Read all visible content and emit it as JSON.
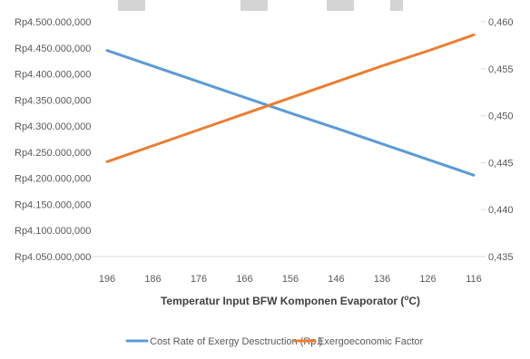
{
  "chart_data": {
    "type": "line",
    "x": [
      "196",
      "186",
      "176",
      "166",
      "156",
      "146",
      "136",
      "126",
      "116"
    ],
    "xlabel": "Temperatur Input BFW Komponen Evaporator (",
    "xlabel_unit": "o",
    "xlabel_suffix": "C)",
    "y_left": {
      "ticks": [
        "Rp4.050.000,000",
        "Rp4.100.000,000",
        "Rp4.150.000,000",
        "Rp4.200.000,000",
        "Rp4.250.000,000",
        "Rp4.300.000,000",
        "Rp4.350.000,000",
        "Rp4.400.000,000",
        "Rp4.450.000,000",
        "Rp4.500.000,000"
      ],
      "ylim": [
        4050000000,
        4500000000
      ]
    },
    "y_right": {
      "ticks": [
        "0,435",
        "0,440",
        "0,445",
        "0,450",
        "0,455",
        "0,460"
      ],
      "ylim": [
        0.435,
        0.46
      ]
    },
    "series": [
      {
        "name": "Cost Rate of Exergy Desctruction (Rp.)",
        "axis": "left",
        "color": "#5B9BD5",
        "values": [
          4445000000,
          4415000000,
          4385000000,
          4355000000,
          4325000000,
          4296000000,
          4266000000,
          4236000000,
          4206000000
        ]
      },
      {
        "name": "Exergoeconomic Factor",
        "axis": "right",
        "color": "#ED7D31",
        "values": [
          0.4451,
          0.4468,
          0.4485,
          0.4502,
          0.4519,
          0.4536,
          0.4553,
          0.4569,
          0.4586
        ]
      }
    ],
    "grid": false,
    "legend": "bottom"
  }
}
